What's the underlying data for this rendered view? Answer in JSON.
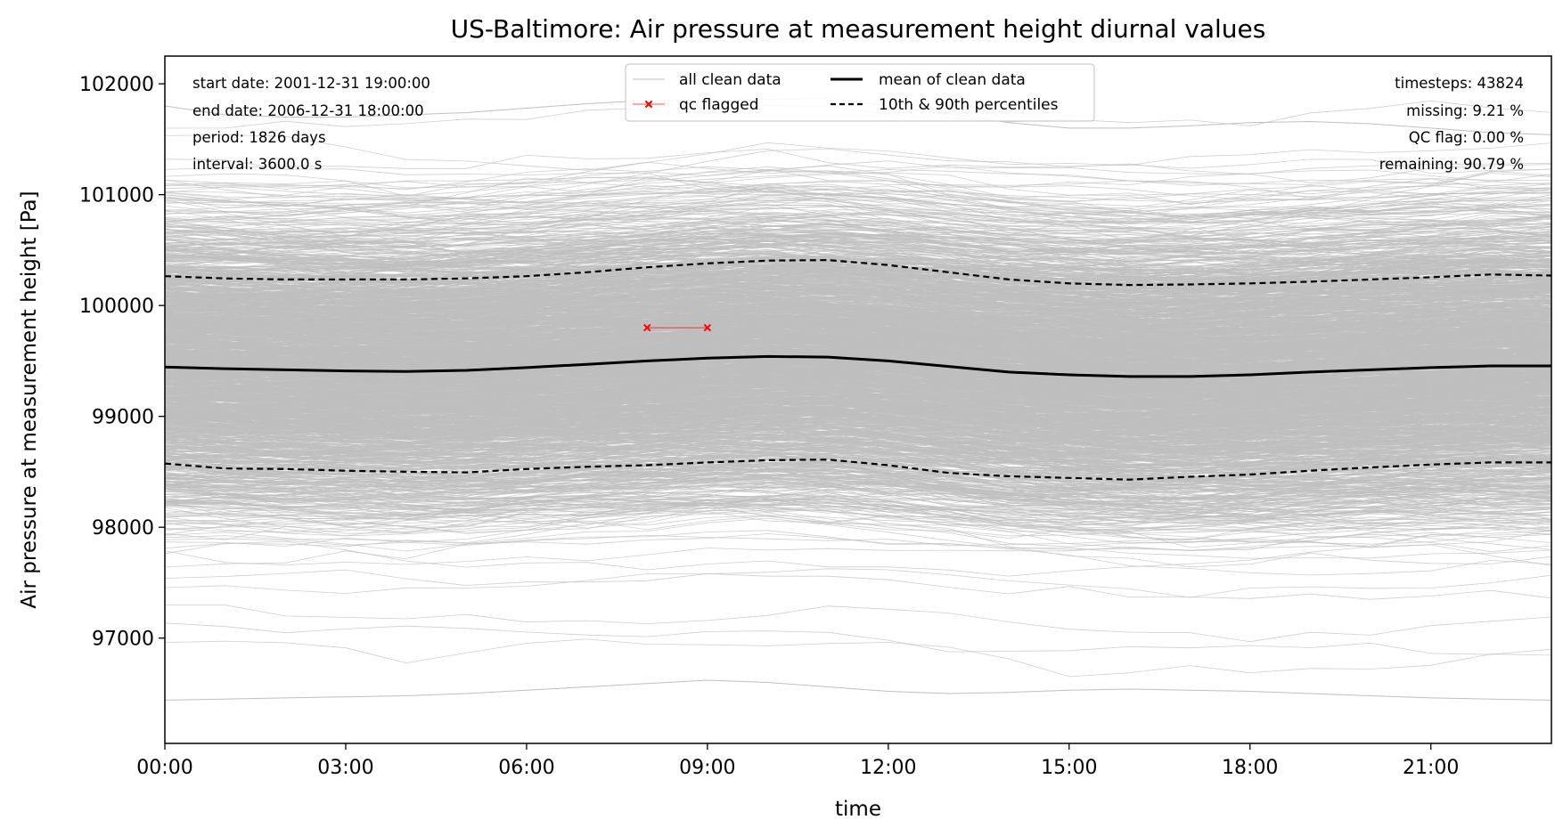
{
  "chart_data": {
    "type": "line",
    "title": "US-Baltimore: Air pressure at measurement height diurnal values",
    "xlabel": "time",
    "ylabel": "Air pressure at measurement height [Pa]",
    "xlim": [
      0,
      23
    ],
    "ylim": [
      96050,
      102250
    ],
    "x_ticks": [
      0,
      3,
      6,
      9,
      12,
      15,
      18,
      21
    ],
    "x_tick_labels": [
      "00:00",
      "03:00",
      "06:00",
      "09:00",
      "12:00",
      "15:00",
      "18:00",
      "21:00"
    ],
    "y_ticks": [
      97000,
      98000,
      99000,
      100000,
      101000,
      102000
    ],
    "y_tick_labels": [
      "97000",
      "98000",
      "99000",
      "100000",
      "101000",
      "102000"
    ],
    "hours": [
      0,
      1,
      2,
      3,
      4,
      5,
      6,
      7,
      8,
      9,
      10,
      11,
      12,
      13,
      14,
      15,
      16,
      17,
      18,
      19,
      20,
      21,
      22,
      23
    ],
    "series": [
      {
        "name": "mean of clean data",
        "style": "solid",
        "color": "#000000",
        "values": [
          99445,
          99430,
          99420,
          99410,
          99405,
          99415,
          99440,
          99470,
          99500,
          99525,
          99540,
          99535,
          99500,
          99450,
          99400,
          99375,
          99360,
          99360,
          99375,
          99400,
          99420,
          99440,
          99455,
          99455
        ]
      },
      {
        "name": "10th & 90th percentiles",
        "style": "dashed",
        "color": "#000000",
        "percentile": 90,
        "values": [
          100265,
          100245,
          100235,
          100235,
          100235,
          100245,
          100265,
          100300,
          100345,
          100380,
          100405,
          100410,
          100365,
          100300,
          100235,
          100200,
          100185,
          100190,
          100200,
          100215,
          100235,
          100255,
          100280,
          100270
        ]
      },
      {
        "name": "10th & 90th percentiles",
        "style": "dashed",
        "color": "#000000",
        "percentile": 10,
        "values": [
          98575,
          98530,
          98525,
          98510,
          98500,
          98495,
          98525,
          98545,
          98560,
          98585,
          98605,
          98610,
          98560,
          98490,
          98460,
          98445,
          98430,
          98455,
          98475,
          98510,
          98540,
          98565,
          98585,
          98585
        ]
      }
    ],
    "qc_flagged": {
      "name": "qc flagged",
      "color": "#ff0000",
      "marker": "x",
      "x": [
        8,
        9
      ],
      "y": [
        99800,
        99800
      ]
    },
    "background_series": {
      "name": "all clean data",
      "color": "#bfbfbf",
      "day_count": 1826,
      "lowest_trace": [
        96440,
        96450,
        96460,
        96470,
        96480,
        96500,
        96530,
        96560,
        96590,
        96620,
        96600,
        96560,
        96520,
        96500,
        96510,
        96530,
        96540,
        96530,
        96520,
        96500,
        96480,
        96460,
        96450,
        96440
      ],
      "highest_trace": [
        101800,
        101720,
        101700,
        101700,
        101720,
        101740,
        101780,
        101820,
        101850,
        101850,
        101860,
        101870,
        101800,
        101730,
        101650,
        101600,
        101600,
        101620,
        101650,
        101660,
        101640,
        101600,
        101560,
        101540
      ]
    },
    "legend": {
      "placement": "upper center",
      "entries": [
        {
          "label": "all clean data",
          "kind": "thin-grey-line"
        },
        {
          "label": "qc flagged",
          "kind": "red-line-x"
        },
        {
          "label": "mean of clean data",
          "kind": "thick-black-line"
        },
        {
          "label": "10th & 90th percentiles",
          "kind": "dashed-black-line"
        }
      ]
    },
    "info_left": [
      "start date: 2001-12-31 19:00:00",
      "end date: 2006-12-31 18:00:00",
      "period: 1826 days",
      "interval: 3600.0 s"
    ],
    "info_right": [
      "timesteps: 43824",
      "missing: 9.21 %",
      "QC flag: 0.00 %",
      "remaining: 90.79 %"
    ],
    "grid": false
  }
}
